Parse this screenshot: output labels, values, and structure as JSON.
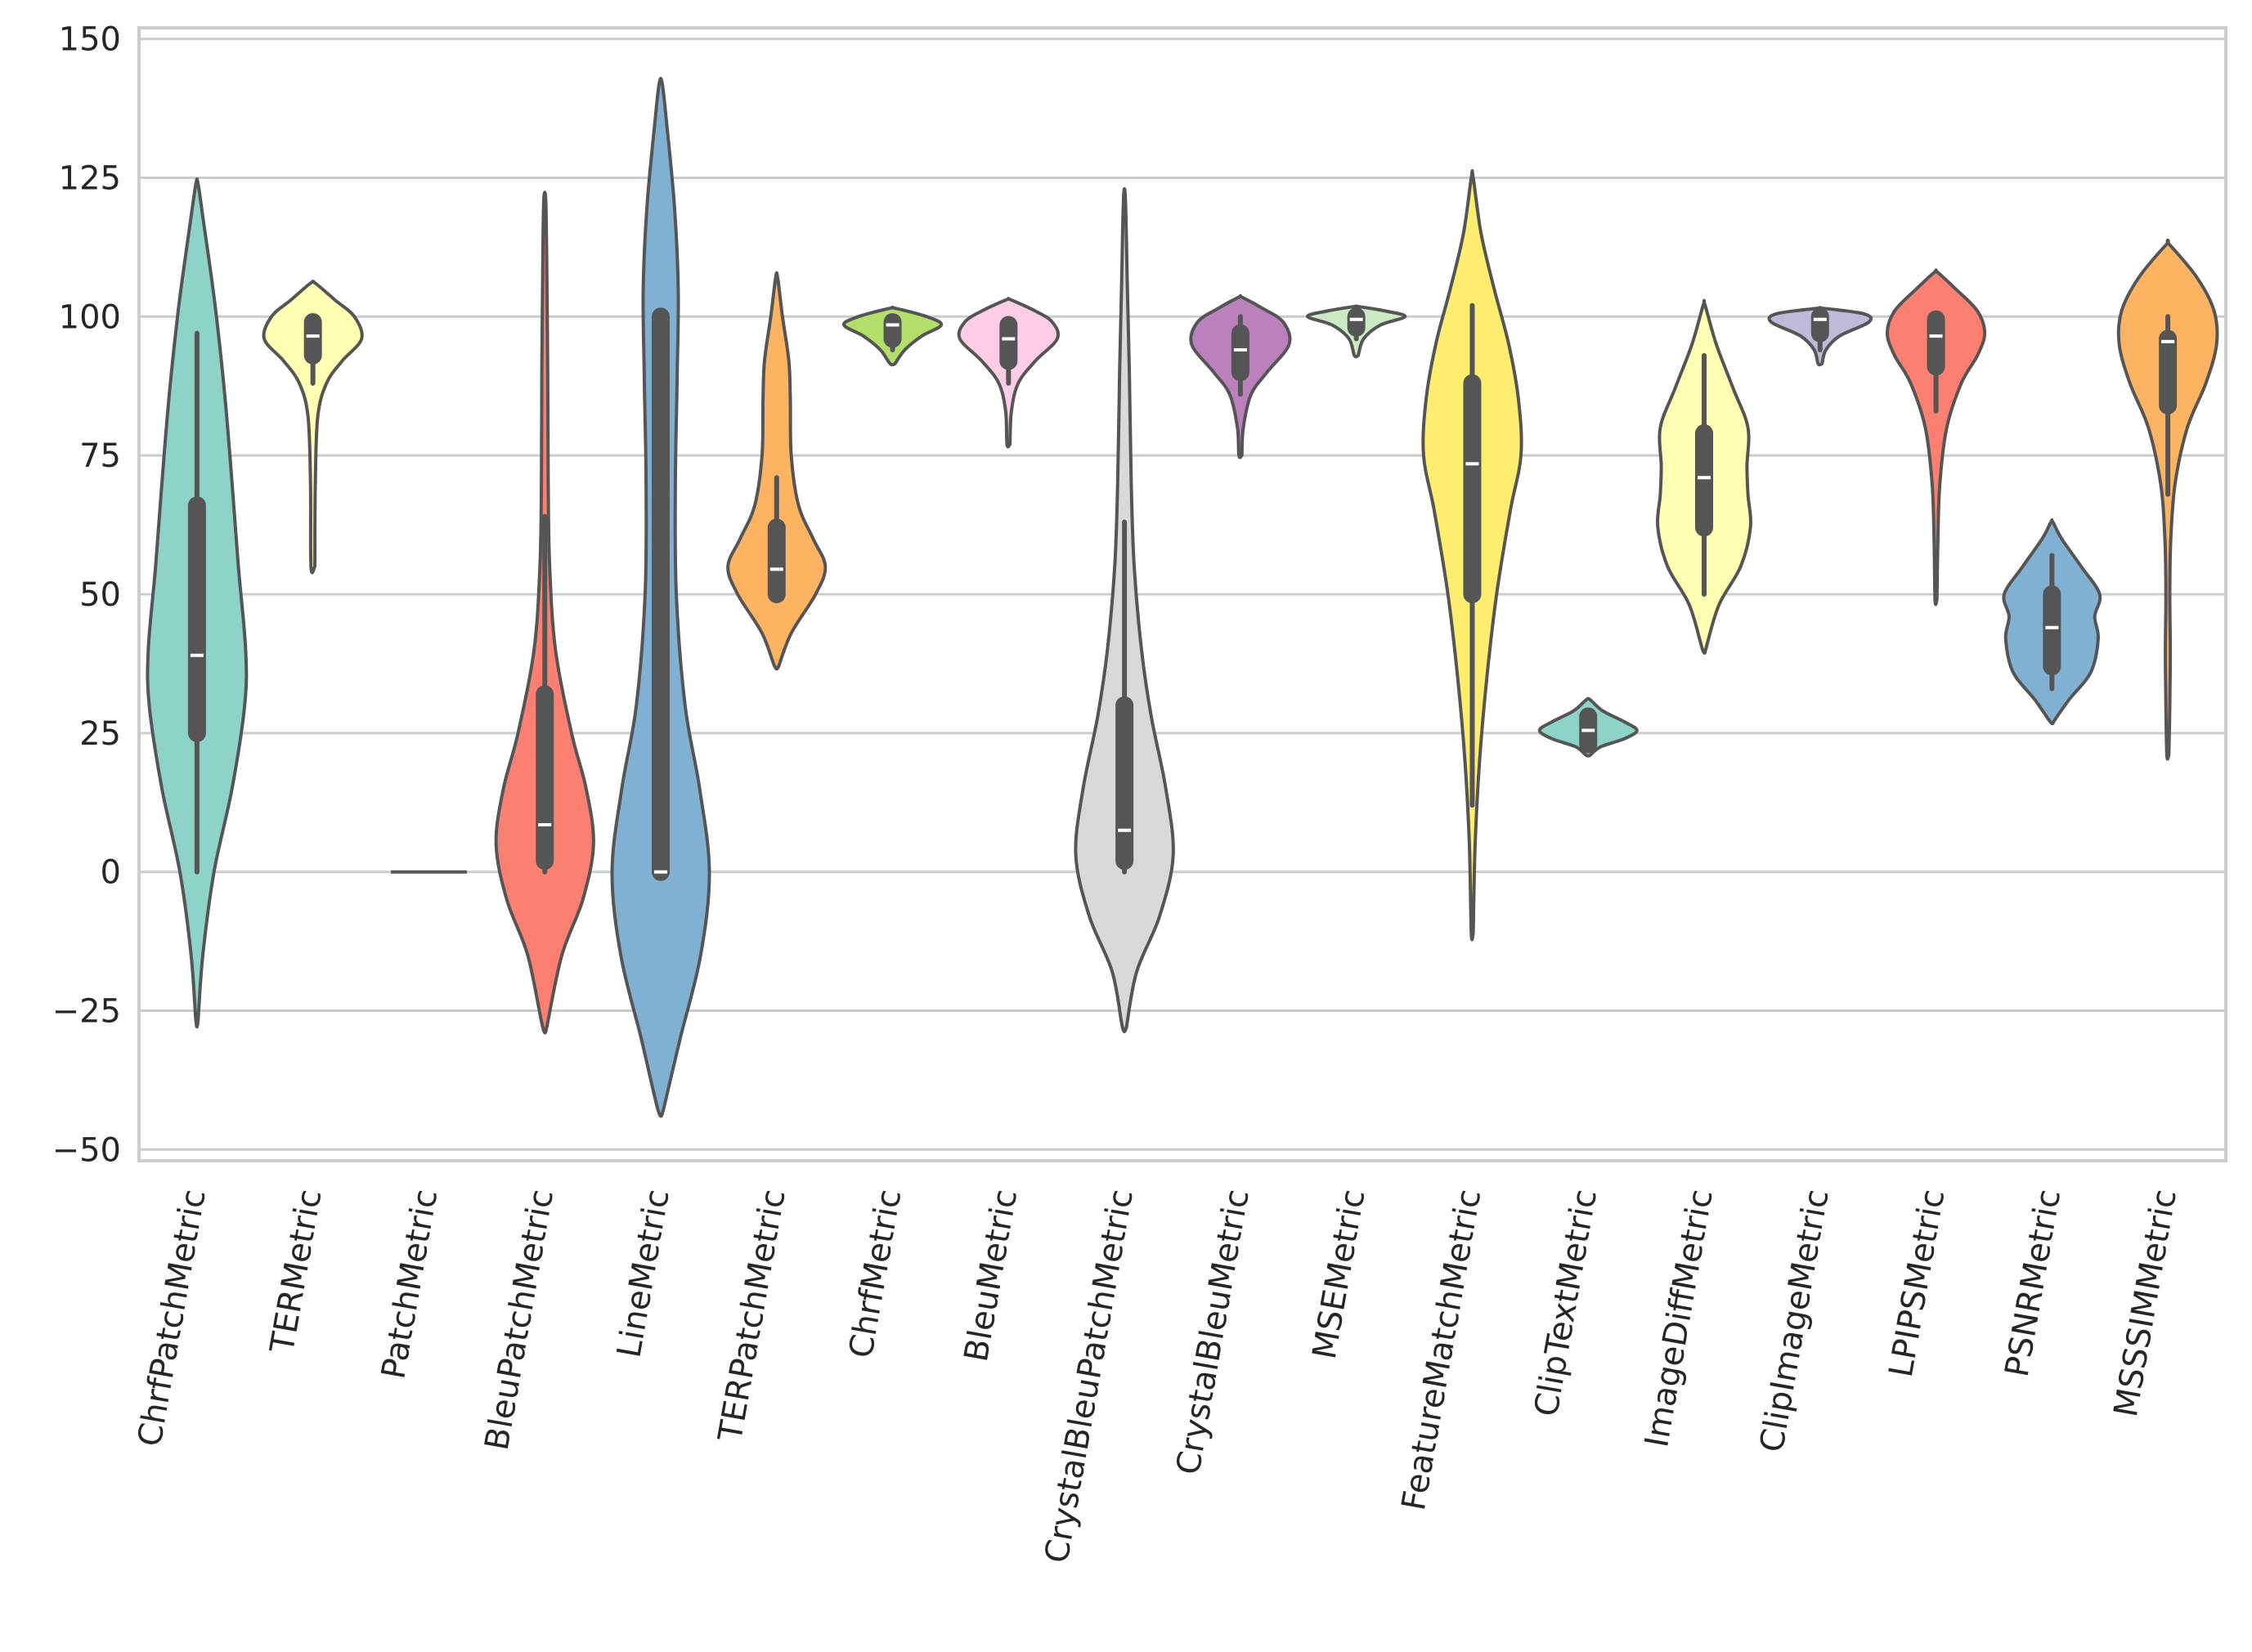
{
  "chart_data": {
    "type": "violin",
    "title": "",
    "xlabel": "",
    "ylabel": "",
    "ylim": [
      -52,
      152
    ],
    "yticks": [
      -50,
      -25,
      0,
      25,
      50,
      75,
      100,
      125,
      150
    ],
    "ytick_labels": [
      "−50",
      "−25",
      "0",
      "25",
      "50",
      "75",
      "100",
      "125",
      "150"
    ],
    "grid": "horizontal",
    "x_label_rotation_deg": -80,
    "categories": [
      "ChrfPatchMetric",
      "TERMetric",
      "PatchMetric",
      "BleuPatchMetric",
      "LineMetric",
      "TERPatchMetric",
      "ChrfMetric",
      "BleuMetric",
      "CrystalBleuPatchMetric",
      "CrystalBleuMetric",
      "MSEMetric",
      "FeatureMatchMetric",
      "ClipTextMetric",
      "ImageDiffMetric",
      "ClipImageMetric",
      "LPIPSMetric",
      "PSNRMetric",
      "MSSSIMMetric"
    ],
    "series": [
      {
        "color": "#8dd3c7",
        "whisker": [
          0,
          97
        ],
        "box": [
          25,
          66
        ],
        "median": 39,
        "density": [
          [
            -27,
            0.02
          ],
          [
            -15,
            0.12
          ],
          [
            0,
            0.35
          ],
          [
            15,
            0.72
          ],
          [
            30,
            0.98
          ],
          [
            40,
            1.0
          ],
          [
            55,
            0.85
          ],
          [
            70,
            0.72
          ],
          [
            85,
            0.58
          ],
          [
            100,
            0.4
          ],
          [
            110,
            0.25
          ],
          [
            118,
            0.12
          ],
          [
            124,
            0.02
          ]
        ]
      },
      {
        "color": "#ffffb3",
        "whisker": [
          88,
          100
        ],
        "box": [
          93,
          99
        ],
        "median": 96.5,
        "density": [
          [
            55,
            0.04
          ],
          [
            70,
            0.05
          ],
          [
            82,
            0.1
          ],
          [
            88,
            0.28
          ],
          [
            92,
            0.6
          ],
          [
            96,
            1.0
          ],
          [
            100,
            0.85
          ],
          [
            103,
            0.45
          ],
          [
            106,
            0.05
          ]
        ]
      },
      {
        "color": "#bebada",
        "whisker": [
          0,
          0
        ],
        "box": [
          0,
          0
        ],
        "median": 0,
        "density": [
          [
            -0.1,
            1.0
          ],
          [
            0.1,
            1.0
          ]
        ]
      },
      {
        "color": "#fb8072",
        "whisker": [
          0,
          64
        ],
        "box": [
          2,
          32
        ],
        "median": 8.5,
        "density": [
          [
            -28,
            0.04
          ],
          [
            -15,
            0.35
          ],
          [
            -5,
            0.78
          ],
          [
            5,
            1.0
          ],
          [
            15,
            0.85
          ],
          [
            25,
            0.55
          ],
          [
            40,
            0.22
          ],
          [
            55,
            0.1
          ],
          [
            70,
            0.07
          ],
          [
            90,
            0.06
          ],
          [
            110,
            0.04
          ],
          [
            121,
            0.02
          ]
        ]
      },
      {
        "color": "#80b1d3",
        "whisker": [
          0,
          100
        ],
        "box": [
          0,
          100
        ],
        "median": 0,
        "density": [
          [
            -43,
            0.05
          ],
          [
            -30,
            0.4
          ],
          [
            -15,
            0.82
          ],
          [
            0,
            1.0
          ],
          [
            15,
            0.8
          ],
          [
            30,
            0.5
          ],
          [
            50,
            0.32
          ],
          [
            70,
            0.3
          ],
          [
            90,
            0.34
          ],
          [
            105,
            0.36
          ],
          [
            120,
            0.28
          ],
          [
            135,
            0.12
          ],
          [
            142,
            0.03
          ]
        ]
      },
      {
        "color": "#fdb462",
        "whisker": [
          50,
          71
        ],
        "box": [
          50,
          62
        ],
        "median": 54.5,
        "density": [
          [
            37,
            0.04
          ],
          [
            43,
            0.3
          ],
          [
            50,
            0.8
          ],
          [
            55,
            1.0
          ],
          [
            60,
            0.75
          ],
          [
            66,
            0.45
          ],
          [
            75,
            0.3
          ],
          [
            85,
            0.28
          ],
          [
            92,
            0.25
          ],
          [
            100,
            0.12
          ],
          [
            107,
            0.02
          ]
        ]
      },
      {
        "color": "#b3de69",
        "whisker": [
          94,
          100
        ],
        "box": [
          96,
          99
        ],
        "median": 98.5,
        "density": [
          [
            91.5,
            0.05
          ],
          [
            94,
            0.25
          ],
          [
            96.5,
            0.6
          ],
          [
            98.5,
            1.0
          ],
          [
            100,
            0.7
          ],
          [
            101.5,
            0.05
          ]
        ]
      },
      {
        "color": "#fccde5",
        "whisker": [
          88,
          99
        ],
        "box": [
          92,
          98.5
        ],
        "median": 96,
        "density": [
          [
            77,
            0.03
          ],
          [
            83,
            0.06
          ],
          [
            88,
            0.2
          ],
          [
            92,
            0.55
          ],
          [
            96,
            1.0
          ],
          [
            99,
            0.9
          ],
          [
            101,
            0.55
          ],
          [
            103,
            0.05
          ]
        ]
      },
      {
        "color": "#d9d9d9",
        "whisker": [
          0,
          63
        ],
        "box": [
          2,
          30
        ],
        "median": 7.5,
        "density": [
          [
            -28,
            0.04
          ],
          [
            -18,
            0.25
          ],
          [
            -8,
            0.72
          ],
          [
            3,
            1.0
          ],
          [
            15,
            0.85
          ],
          [
            28,
            0.55
          ],
          [
            40,
            0.35
          ],
          [
            55,
            0.2
          ],
          [
            70,
            0.14
          ],
          [
            90,
            0.1
          ],
          [
            105,
            0.06
          ],
          [
            121,
            0.02
          ]
        ]
      },
      {
        "color": "#bc80bd",
        "whisker": [
          86,
          100
        ],
        "box": [
          90,
          97
        ],
        "median": 94,
        "density": [
          [
            75,
            0.03
          ],
          [
            80,
            0.06
          ],
          [
            86,
            0.22
          ],
          [
            90,
            0.55
          ],
          [
            95,
            1.0
          ],
          [
            99,
            0.88
          ],
          [
            101.5,
            0.45
          ],
          [
            103.5,
            0.03
          ]
        ]
      },
      {
        "color": "#ccebc5",
        "whisker": [
          96,
          100
        ],
        "box": [
          98,
          100
        ],
        "median": 99.5,
        "density": [
          [
            93,
            0.04
          ],
          [
            96,
            0.15
          ],
          [
            98.5,
            0.5
          ],
          [
            100,
            1.0
          ],
          [
            101,
            0.6
          ],
          [
            101.8,
            0.05
          ]
        ]
      },
      {
        "color": "#ffed6f",
        "whisker": [
          12,
          102
        ],
        "box": [
          50,
          88
        ],
        "median": 73.5,
        "density": [
          [
            -11,
            0.02
          ],
          [
            5,
            0.06
          ],
          [
            20,
            0.15
          ],
          [
            35,
            0.3
          ],
          [
            50,
            0.5
          ],
          [
            65,
            0.78
          ],
          [
            75,
            1.0
          ],
          [
            85,
            0.95
          ],
          [
            95,
            0.75
          ],
          [
            105,
            0.45
          ],
          [
            115,
            0.18
          ],
          [
            125,
            0.02
          ]
        ]
      },
      {
        "color": "#8dd3c7",
        "whisker": [
          22,
          29
        ],
        "box": [
          23,
          28
        ],
        "median": 25.5,
        "density": [
          [
            21,
            0.04
          ],
          [
            22.5,
            0.25
          ],
          [
            24,
            0.75
          ],
          [
            25.5,
            1.0
          ],
          [
            27,
            0.75
          ],
          [
            29,
            0.3
          ],
          [
            31,
            0.04
          ]
        ]
      },
      {
        "color": "#ffffb3",
        "whisker": [
          50,
          93
        ],
        "box": [
          62,
          79
        ],
        "median": 71,
        "density": [
          [
            40,
            0.03
          ],
          [
            48,
            0.3
          ],
          [
            55,
            0.75
          ],
          [
            62,
            0.95
          ],
          [
            68,
            0.9
          ],
          [
            73,
            0.88
          ],
          [
            80,
            0.9
          ],
          [
            87,
            0.6
          ],
          [
            95,
            0.25
          ],
          [
            102,
            0.02
          ]
        ]
      },
      {
        "color": "#bebada",
        "whisker": [
          94,
          100
        ],
        "box": [
          97,
          100
        ],
        "median": 99.5,
        "density": [
          [
            91.5,
            0.04
          ],
          [
            94,
            0.12
          ],
          [
            96.5,
            0.4
          ],
          [
            99,
            1.0
          ],
          [
            100.5,
            0.9
          ],
          [
            101.5,
            0.05
          ]
        ]
      },
      {
        "color": "#fb8072",
        "whisker": [
          83,
          100
        ],
        "box": [
          91,
          99.5
        ],
        "median": 96.5,
        "density": [
          [
            49,
            0.02
          ],
          [
            60,
            0.04
          ],
          [
            70,
            0.08
          ],
          [
            80,
            0.22
          ],
          [
            88,
            0.52
          ],
          [
            93,
            0.85
          ],
          [
            97,
            1.0
          ],
          [
            101,
            0.85
          ],
          [
            105,
            0.4
          ],
          [
            108,
            0.03
          ]
        ]
      },
      {
        "color": "#80b1d3",
        "whisker": [
          33,
          57
        ],
        "box": [
          37,
          50
        ],
        "median": 44,
        "density": [
          [
            27,
            0.03
          ],
          [
            31,
            0.35
          ],
          [
            36,
            0.8
          ],
          [
            42,
            0.95
          ],
          [
            46,
            0.88
          ],
          [
            50,
            0.98
          ],
          [
            55,
            0.6
          ],
          [
            60,
            0.2
          ],
          [
            63,
            0.02
          ]
        ]
      },
      {
        "color": "#fdb462",
        "whisker": [
          68,
          100
        ],
        "box": [
          84,
          96
        ],
        "median": 95.5,
        "density": [
          [
            21,
            0.02
          ],
          [
            30,
            0.04
          ],
          [
            40,
            0.05
          ],
          [
            50,
            0.04
          ],
          [
            60,
            0.06
          ],
          [
            70,
            0.15
          ],
          [
            80,
            0.4
          ],
          [
            88,
            0.78
          ],
          [
            95,
            1.0
          ],
          [
            101,
            0.95
          ],
          [
            107,
            0.6
          ],
          [
            113,
            0.03
          ]
        ]
      }
    ]
  }
}
